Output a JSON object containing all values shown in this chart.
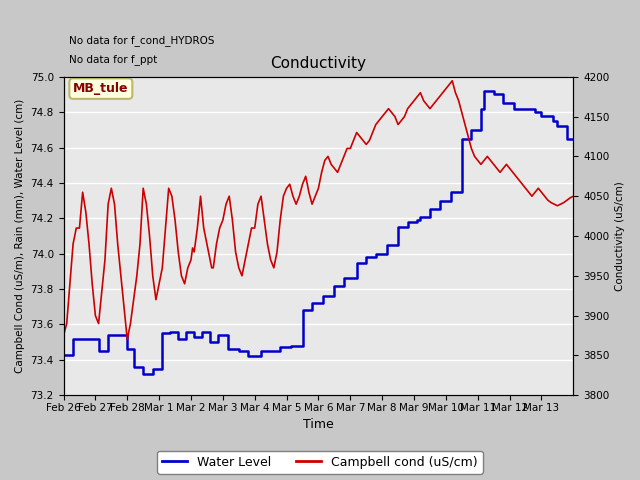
{
  "title": "Conductivity",
  "xlabel": "Time",
  "ylabel_left": "Campbell Cond (uS/m), Rain (mm), Water Level (cm)",
  "ylabel_right": "Conductivity (uS/cm)",
  "annotations": [
    "No data for f_cond_HYDROS",
    "No data for f_ppt"
  ],
  "legend_box_label": "MB_tule",
  "x_tick_labels": [
    "Feb 26",
    "Feb 27",
    "Feb 28",
    "Mar 1",
    "Mar 2",
    "Mar 3",
    "Mar 4",
    "Mar 5",
    "Mar 6",
    "Mar 7",
    "Mar 8",
    "Mar 9",
    "Mar 10",
    "Mar 11",
    "Mar 12",
    "Mar 13"
  ],
  "ylim_left": [
    73.2,
    75.0
  ],
  "ylim_right": [
    3800,
    4200
  ],
  "yticks_left": [
    73.2,
    73.4,
    73.6,
    73.8,
    74.0,
    74.2,
    74.4,
    74.6,
    74.8,
    75.0
  ],
  "yticks_right": [
    3800,
    3850,
    3900,
    3950,
    4000,
    4050,
    4100,
    4150,
    4200
  ],
  "fig_bg_color": "#c8c8c8",
  "plot_bg_color": "#e8e8e8",
  "grid_color": "#ffffff",
  "water_level_color": "#0000cc",
  "campbell_cond_color": "#cc0000",
  "water_level_x": [
    0,
    0.15,
    0.3,
    0.5,
    0.7,
    0.85,
    1.0,
    1.1,
    1.2,
    1.4,
    1.5,
    1.6,
    1.8,
    2.0,
    2.1,
    2.2,
    2.35,
    2.5,
    2.65,
    2.8,
    3.0,
    3.1,
    3.2,
    3.35,
    3.5,
    3.6,
    3.7,
    3.85,
    4.0,
    4.1,
    4.2,
    4.35,
    4.5,
    4.6,
    4.7,
    4.85,
    5.0,
    5.15,
    5.3,
    5.5,
    5.65,
    5.8,
    6.0,
    6.2,
    6.35,
    6.5,
    6.65,
    6.8,
    7.0,
    7.15,
    7.3,
    7.5,
    7.65,
    7.8,
    8.0,
    8.15,
    8.3,
    8.5,
    8.65,
    8.8,
    9.0,
    9.2,
    9.35,
    9.5,
    9.65,
    9.8,
    10.0,
    10.15,
    10.3,
    10.5,
    10.65,
    10.8,
    11.0,
    11.1,
    11.2,
    11.3,
    11.5,
    11.65,
    11.8,
    12.0,
    12.15,
    12.3,
    12.5,
    12.65,
    12.8,
    13.0,
    13.1,
    13.2,
    13.3,
    13.5,
    13.65,
    13.8,
    14.0,
    14.15,
    14.3,
    14.5,
    14.65,
    14.8,
    15.0,
    15.2,
    15.35,
    15.5,
    15.65,
    15.8,
    16.0
  ],
  "water_level_y": [
    73.43,
    73.43,
    73.52,
    73.52,
    73.52,
    73.52,
    73.52,
    73.45,
    73.45,
    73.54,
    73.54,
    73.54,
    73.54,
    73.46,
    73.46,
    73.36,
    73.36,
    73.32,
    73.32,
    73.35,
    73.35,
    73.55,
    73.55,
    73.56,
    73.56,
    73.52,
    73.52,
    73.56,
    73.56,
    73.53,
    73.53,
    73.56,
    73.56,
    73.5,
    73.5,
    73.54,
    73.54,
    73.46,
    73.46,
    73.45,
    73.45,
    73.42,
    73.42,
    73.45,
    73.45,
    73.45,
    73.45,
    73.47,
    73.47,
    73.48,
    73.48,
    73.68,
    73.68,
    73.72,
    73.72,
    73.76,
    73.76,
    73.82,
    73.82,
    73.86,
    73.86,
    73.95,
    73.95,
    73.98,
    73.98,
    74.0,
    74.0,
    74.05,
    74.05,
    74.15,
    74.15,
    74.18,
    74.18,
    74.19,
    74.21,
    74.21,
    74.25,
    74.25,
    74.3,
    74.3,
    74.35,
    74.35,
    74.65,
    74.65,
    74.7,
    74.7,
    74.82,
    74.92,
    74.92,
    74.9,
    74.9,
    74.85,
    74.85,
    74.82,
    74.82,
    74.82,
    74.82,
    74.8,
    74.78,
    74.78,
    74.75,
    74.72,
    74.72,
    74.65,
    74.65
  ],
  "campbell_x": [
    0,
    0.1,
    0.2,
    0.3,
    0.4,
    0.5,
    0.6,
    0.7,
    0.8,
    0.9,
    1.0,
    1.1,
    1.2,
    1.3,
    1.4,
    1.5,
    1.6,
    1.7,
    1.8,
    1.9,
    2.0,
    2.1,
    2.2,
    2.3,
    2.4,
    2.5,
    2.6,
    2.7,
    2.8,
    2.9,
    3.0,
    3.1,
    3.2,
    3.3,
    3.4,
    3.5,
    3.6,
    3.7,
    3.8,
    3.9,
    4.0,
    4.05,
    4.1,
    4.2,
    4.3,
    4.4,
    4.5,
    4.6,
    4.65,
    4.7,
    4.8,
    4.9,
    5.0,
    5.1,
    5.2,
    5.3,
    5.4,
    5.5,
    5.6,
    5.7,
    5.8,
    5.9,
    6.0,
    6.1,
    6.2,
    6.3,
    6.4,
    6.5,
    6.6,
    6.7,
    6.8,
    6.9,
    7.0,
    7.1,
    7.2,
    7.3,
    7.4,
    7.5,
    7.6,
    7.7,
    7.8,
    7.9,
    8.0,
    8.1,
    8.2,
    8.3,
    8.4,
    8.5,
    8.6,
    8.7,
    8.8,
    8.9,
    9.0,
    9.1,
    9.2,
    9.3,
    9.4,
    9.5,
    9.6,
    9.7,
    9.8,
    9.9,
    10.0,
    10.1,
    10.2,
    10.3,
    10.4,
    10.5,
    10.6,
    10.7,
    10.8,
    10.9,
    11.0,
    11.1,
    11.2,
    11.3,
    11.4,
    11.5,
    11.6,
    11.7,
    11.8,
    11.9,
    12.0,
    12.1,
    12.2,
    12.3,
    12.4,
    12.5,
    12.6,
    12.7,
    12.8,
    12.9,
    13.0,
    13.1,
    13.2,
    13.3,
    13.4,
    13.5,
    13.6,
    13.7,
    13.8,
    13.9,
    14.0,
    14.1,
    14.2,
    14.3,
    14.4,
    14.5,
    14.6,
    14.7,
    14.8,
    14.9,
    15.0,
    15.1,
    15.2,
    15.3,
    15.4,
    15.5,
    15.6,
    15.7,
    15.8,
    15.9,
    16.0
  ],
  "campbell_y": [
    3875,
    3890,
    3940,
    3990,
    4010,
    4010,
    4055,
    4030,
    3990,
    3940,
    3900,
    3890,
    3930,
    3970,
    4040,
    4060,
    4040,
    3990,
    3950,
    3910,
    3870,
    3890,
    3920,
    3950,
    3990,
    4060,
    4040,
    4000,
    3950,
    3920,
    3940,
    3960,
    4010,
    4060,
    4050,
    4020,
    3980,
    3950,
    3940,
    3960,
    3970,
    3985,
    3980,
    4010,
    4050,
    4010,
    3990,
    3970,
    3960,
    3960,
    3990,
    4010,
    4020,
    4040,
    4050,
    4020,
    3980,
    3960,
    3950,
    3970,
    3990,
    4010,
    4010,
    4040,
    4050,
    4020,
    3990,
    3970,
    3960,
    3980,
    4020,
    4050,
    4060,
    4065,
    4050,
    4040,
    4050,
    4065,
    4075,
    4055,
    4040,
    4050,
    4060,
    4080,
    4095,
    4100,
    4090,
    4085,
    4080,
    4090,
    4100,
    4110,
    4110,
    4120,
    4130,
    4125,
    4120,
    4115,
    4120,
    4130,
    4140,
    4145,
    4150,
    4155,
    4160,
    4155,
    4150,
    4140,
    4145,
    4150,
    4160,
    4165,
    4170,
    4175,
    4180,
    4170,
    4165,
    4160,
    4165,
    4170,
    4175,
    4180,
    4185,
    4190,
    4195,
    4180,
    4170,
    4155,
    4140,
    4125,
    4110,
    4100,
    4095,
    4090,
    4095,
    4100,
    4095,
    4090,
    4085,
    4080,
    4085,
    4090,
    4085,
    4080,
    4075,
    4070,
    4065,
    4060,
    4055,
    4050,
    4055,
    4060,
    4055,
    4050,
    4045,
    4042,
    4040,
    4038,
    4040,
    4042,
    4045,
    4048,
    4050
  ]
}
